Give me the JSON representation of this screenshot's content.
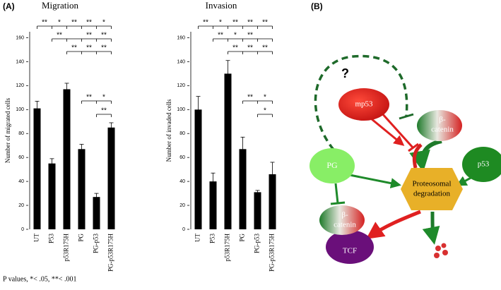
{
  "panel_a": "(A)",
  "panel_b": "(B)",
  "footnote": "P values, *< .05, **< .001",
  "chart_data": [
    {
      "type": "bar",
      "title": "Migration",
      "y_label": "Number of migrated cells",
      "categories": [
        "UT",
        "P53",
        "p53R175H",
        "PG",
        "PG-p53",
        "PG-p53R175H"
      ],
      "values": [
        101,
        55,
        117,
        67,
        27,
        85
      ],
      "errors": [
        6,
        4,
        5,
        4,
        3,
        4
      ],
      "color": "#000000",
      "ylim": [
        0,
        165
      ],
      "yticks": [
        0,
        20,
        40,
        60,
        80,
        100,
        120,
        140,
        160
      ],
      "significance": [
        [
          "**",
          "*",
          "**",
          "**",
          "*"
        ],
        [
          "**",
          null,
          "**",
          "**"
        ],
        [
          "**",
          "**",
          "**"
        ],
        [
          "**",
          "*"
        ],
        [
          "**"
        ]
      ]
    },
    {
      "type": "bar",
      "title": "Invasion",
      "y_label": "Number of invaded cells",
      "categories": [
        "UT",
        "P53",
        "p53R175H",
        "PG",
        "PG-p53",
        "PG-p53R175H"
      ],
      "values": [
        100,
        40,
        130,
        67,
        31,
        46
      ],
      "errors": [
        11,
        7,
        11,
        10,
        1.5,
        10
      ],
      "color": "#000000",
      "ylim": [
        0,
        165
      ],
      "yticks": [
        0,
        20,
        40,
        60,
        80,
        100,
        120,
        140,
        160
      ],
      "significance": [
        [
          "**",
          "*",
          "**",
          "**",
          "**"
        ],
        [
          "**",
          "*",
          "**",
          null
        ],
        [
          "**",
          "**",
          "**"
        ],
        [
          "**",
          "*"
        ],
        [
          "*"
        ]
      ]
    }
  ],
  "diagram": {
    "question": "?",
    "mp53": "mp53",
    "beta_catenin_top": [
      "β-",
      "catenin"
    ],
    "pg": "PG",
    "p53": "p53",
    "proteosome": [
      "Proteosomal",
      "degradation"
    ],
    "beta_catenin_bottom": [
      "β-",
      "catenin"
    ],
    "tcf": "TCF"
  }
}
